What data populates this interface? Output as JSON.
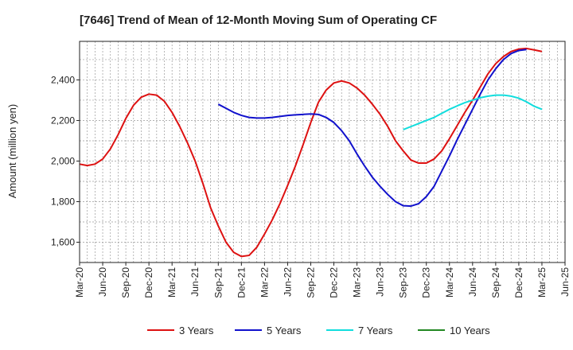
{
  "chart_data": {
    "type": "line",
    "title": "[7646]  Trend of Mean of 12-Month Moving Sum of Operating CF",
    "xlabel": "",
    "ylabel": "Amount (million yen)",
    "ylim": [
      1500,
      2590
    ],
    "yticks": [
      1600,
      1800,
      2000,
      2200,
      2400
    ],
    "ytick_labels": [
      "1,600",
      "1,800",
      "2,000",
      "2,200",
      "2,400"
    ],
    "x_start": "Mar-20",
    "x_end": "Jun-25",
    "xtick_labels": [
      "Mar-20",
      "Jun-20",
      "Sep-20",
      "Dec-20",
      "Mar-21",
      "Jun-21",
      "Sep-21",
      "Dec-21",
      "Mar-22",
      "Jun-22",
      "Sep-22",
      "Dec-22",
      "Mar-23",
      "Jun-23",
      "Sep-23",
      "Dec-23",
      "Mar-24",
      "Jun-24",
      "Sep-24",
      "Dec-24",
      "Mar-25",
      "Jun-25"
    ],
    "grid": true,
    "legend_position": "bottom",
    "series": [
      {
        "name": "3 Years",
        "color": "#dd1111",
        "start_index": 0,
        "values": [
          1985,
          1978,
          1985,
          2010,
          2060,
          2130,
          2210,
          2275,
          2315,
          2330,
          2325,
          2295,
          2240,
          2170,
          2090,
          2000,
          1890,
          1770,
          1680,
          1600,
          1550,
          1530,
          1535,
          1575,
          1640,
          1710,
          1790,
          1880,
          1975,
          2080,
          2190,
          2290,
          2350,
          2385,
          2395,
          2385,
          2360,
          2325,
          2280,
          2230,
          2170,
          2100,
          2050,
          2005,
          1990,
          1990,
          2010,
          2050,
          2110,
          2175,
          2240,
          2300,
          2365,
          2430,
          2480,
          2515,
          2540,
          2552,
          2555,
          2548,
          2540
        ]
      },
      {
        "name": "5 Years",
        "color": "#1111cc",
        "start_index": 18,
        "values": [
          2280,
          2260,
          2240,
          2225,
          2215,
          2212,
          2212,
          2215,
          2220,
          2225,
          2228,
          2230,
          2232,
          2230,
          2215,
          2190,
          2150,
          2100,
          2035,
          1975,
          1920,
          1875,
          1835,
          1800,
          1780,
          1778,
          1790,
          1825,
          1875,
          1950,
          2025,
          2105,
          2180,
          2255,
          2330,
          2400,
          2455,
          2500,
          2530,
          2545,
          2550
        ]
      },
      {
        "name": "7 Years",
        "color": "#11dddd",
        "start_index": 42,
        "values": [
          2155,
          2170,
          2185,
          2200,
          2215,
          2235,
          2255,
          2272,
          2288,
          2300,
          2312,
          2320,
          2325,
          2325,
          2320,
          2310,
          2292,
          2270,
          2255
        ]
      },
      {
        "name": "10 Years",
        "color": "#228822",
        "start_index": 0,
        "values": []
      }
    ]
  }
}
